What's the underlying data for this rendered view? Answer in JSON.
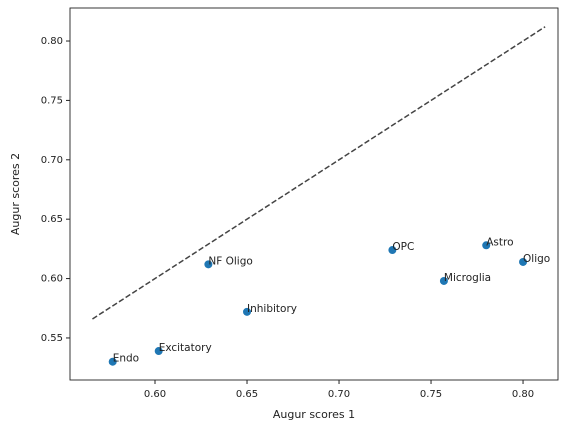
{
  "chart_data": {
    "type": "scatter",
    "x_label": "Augur scores 1",
    "y_label": "Augur scores 2",
    "x": [
      0.577,
      0.602,
      0.629,
      0.65,
      0.729,
      0.757,
      0.78,
      0.8
    ],
    "y": [
      0.53,
      0.539,
      0.612,
      0.572,
      0.624,
      0.598,
      0.628,
      0.614
    ],
    "labels": [
      "Endo",
      "Excitatory",
      "NF Oligo",
      "Inhibitory",
      "OPC",
      "Microglia",
      "Astro",
      "Oligo"
    ],
    "color": "#1f77b4",
    "reference_line": {
      "x": [
        0.566,
        0.812
      ],
      "y": [
        0.566,
        0.812
      ],
      "color": "#444444",
      "dashed": true
    },
    "xlim": [
      0.5538,
      0.819
    ],
    "ylim": [
      0.5146,
      0.8278
    ],
    "xticks": [
      {
        "value": 0.6,
        "label": "0.60"
      },
      0.65,
      {
        "value": 0.7,
        "label": "0.70"
      },
      0.75,
      {
        "value": 0.8,
        "label": "0.80"
      }
    ],
    "yticks": [
      0.55,
      {
        "value": 0.6,
        "label": "0.60"
      },
      0.65,
      {
        "value": 0.7,
        "label": "0.70"
      },
      0.75,
      {
        "value": 0.8,
        "label": "0.80"
      }
    ],
    "grid": false
  }
}
